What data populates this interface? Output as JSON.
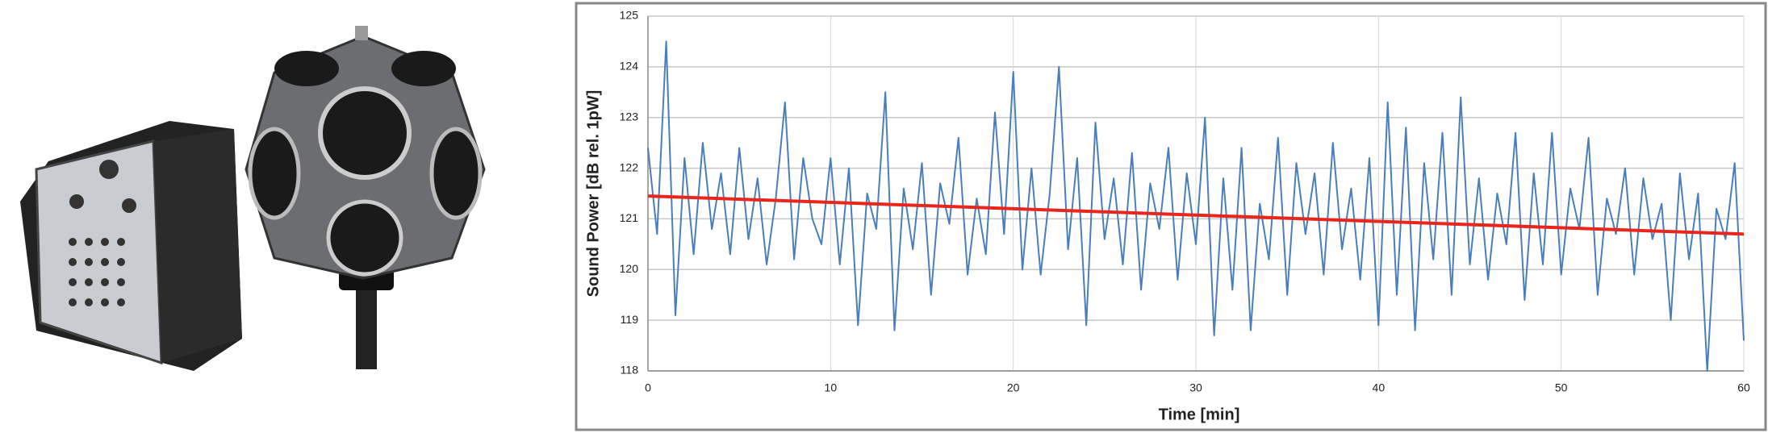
{
  "chart_data": {
    "type": "line",
    "x_label": "Time [min]",
    "y_label": "Sound Power [dB rel. 1pW]",
    "xlim": [
      0,
      60
    ],
    "xticks": [
      0,
      10,
      20,
      30,
      40,
      50,
      60
    ],
    "ylim": [
      118,
      125
    ],
    "yticks": [
      118,
      119,
      120,
      121,
      122,
      123,
      124,
      125
    ],
    "grid": true,
    "series": [
      {
        "color": "#4a7ebb",
        "x": [
          0,
          0.5,
          1,
          1.5,
          2,
          2.5,
          3,
          3.5,
          4,
          4.5,
          5,
          5.5,
          6,
          6.5,
          7,
          7.5,
          8,
          8.5,
          9,
          9.5,
          10,
          10.5,
          11,
          11.5,
          12,
          12.5,
          13,
          13.5,
          14,
          14.5,
          15,
          15.5,
          16,
          16.5,
          17,
          17.5,
          18,
          18.5,
          19,
          19.5,
          20,
          20.5,
          21,
          21.5,
          22,
          22.5,
          23,
          23.5,
          24,
          24.5,
          25,
          25.5,
          26,
          26.5,
          27,
          27.5,
          28,
          28.5,
          29,
          29.5,
          30,
          30.5,
          31,
          31.5,
          32,
          32.5,
          33,
          33.5,
          34,
          34.5,
          35,
          35.5,
          36,
          36.5,
          37,
          37.5,
          38,
          38.5,
          39,
          39.5,
          40,
          40.5,
          41,
          41.5,
          42,
          42.5,
          43,
          43.5,
          44,
          44.5,
          45,
          45.5,
          46,
          46.5,
          47,
          47.5,
          48,
          48.5,
          49,
          49.5,
          50,
          50.5,
          51,
          51.5,
          52,
          52.5,
          53,
          53.5,
          54,
          54.5,
          55,
          55.5,
          56,
          56.5,
          57,
          57.5,
          58,
          58.5,
          59,
          59.5,
          60
        ],
        "values": [
          122.4,
          120.7,
          124.5,
          119.1,
          122.2,
          120.3,
          122.5,
          120.8,
          121.9,
          120.3,
          122.4,
          120.6,
          121.8,
          120.1,
          121.4,
          123.3,
          120.2,
          122.2,
          121.0,
          120.5,
          122.2,
          120.1,
          122.0,
          118.9,
          121.5,
          120.8,
          123.5,
          118.8,
          121.6,
          120.4,
          122.1,
          119.5,
          121.7,
          120.9,
          122.6,
          119.9,
          121.4,
          120.3,
          123.1,
          120.7,
          123.9,
          120.0,
          122.0,
          119.9,
          121.5,
          124.0,
          120.4,
          122.2,
          118.9,
          122.9,
          120.6,
          121.8,
          120.1,
          122.3,
          119.6,
          121.7,
          120.8,
          122.4,
          119.8,
          121.9,
          120.5,
          123.0,
          118.7,
          121.8,
          119.6,
          122.4,
          118.8,
          121.3,
          120.2,
          122.6,
          119.5,
          122.1,
          120.7,
          121.9,
          119.9,
          122.5,
          120.4,
          121.6,
          119.8,
          122.2,
          118.9,
          123.3,
          119.5,
          122.8,
          118.8,
          122.1,
          120.2,
          122.7,
          119.5,
          123.4,
          120.1,
          121.8,
          119.8,
          121.5,
          120.5,
          122.7,
          119.4,
          121.9,
          120.1,
          122.7,
          119.9,
          121.6,
          120.8,
          122.6,
          119.5,
          121.4,
          120.7,
          122.0,
          119.9,
          121.8,
          120.6,
          121.3,
          119.0,
          121.9,
          120.2,
          121.5,
          118.0,
          121.2,
          120.6,
          122.1,
          118.6
        ]
      },
      {
        "color": "#e8261c",
        "x": [
          0,
          60
        ],
        "values": [
          121.45,
          120.7
        ]
      }
    ]
  }
}
